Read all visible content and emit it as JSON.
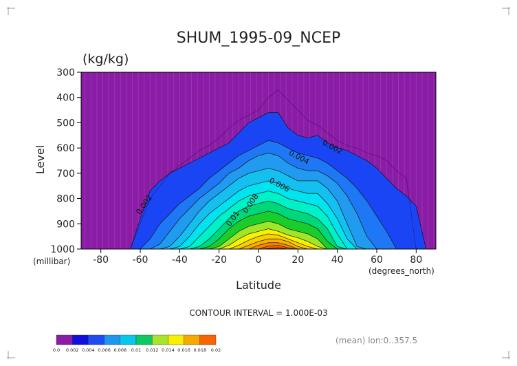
{
  "chart_data": {
    "type": "contour",
    "title": "SHUM_1995-09_NCEP",
    "units": "(kg/kg)",
    "xlabel": "Latitude",
    "ylabel": "Level",
    "x_unit_label": "(degrees_north)",
    "y_unit_label": "(millibar)",
    "xlim": [
      -90,
      90
    ],
    "ylim": [
      1000,
      300
    ],
    "x_ticks": [
      -80,
      -60,
      -40,
      -20,
      0,
      20,
      40,
      60,
      80
    ],
    "y_ticks": [
      300,
      400,
      500,
      600,
      700,
      800,
      900,
      1000
    ],
    "contour_interval_text": "CONTOUR INTERVAL = 1.000E-03",
    "footer_text": "(mean) lon:0..357.5",
    "contour_labels": [
      {
        "text": "0.002",
        "x": 37,
        "y": 605
      },
      {
        "text": "0.004",
        "x": 20,
        "y": 645
      },
      {
        "text": "0.006",
        "x": 10,
        "y": 755
      },
      {
        "text": "0.008",
        "x": -3,
        "y": 825
      },
      {
        "text": "0.01",
        "x": -12,
        "y": 885
      },
      {
        "text": "0.002",
        "x": -57,
        "y": 830
      }
    ],
    "profiles": {
      "lat": [
        -85,
        -75,
        -65,
        -60,
        -55,
        -50,
        -45,
        -40,
        -35,
        -30,
        -25,
        -20,
        -15,
        -10,
        -5,
        0,
        5,
        10,
        15,
        20,
        25,
        30,
        35,
        40,
        45,
        50,
        55,
        60,
        65,
        70,
        75,
        80,
        85
      ],
      "levels": [
        {
          "value": 0.001,
          "p": [
            1001,
            1001,
            1000,
            900,
            800,
            750,
            700,
            670,
            640,
            610,
            590,
            560,
            520,
            490,
            470,
            450,
            400,
            370,
            410,
            450,
            490,
            510,
            540,
            570,
            590,
            600,
            620,
            630,
            650,
            690,
            720,
            1001,
            1001
          ]
        },
        {
          "value": 0.002,
          "p": [
            1001,
            1001,
            1000,
            880,
            770,
            730,
            700,
            680,
            660,
            640,
            620,
            600,
            580,
            540,
            500,
            480,
            460,
            460,
            520,
            550,
            560,
            550,
            580,
            600,
            610,
            630,
            650,
            680,
            720,
            760,
            790,
            830,
            1000
          ]
        },
        {
          "value": 0.003,
          "p": [
            1001,
            1001,
            1001,
            1000,
            960,
            900,
            860,
            820,
            790,
            760,
            720,
            690,
            660,
            630,
            610,
            590,
            570,
            580,
            600,
            620,
            630,
            640,
            660,
            690,
            720,
            760,
            810,
            870,
            930,
            1000,
            1001,
            1001,
            1001
          ]
        },
        {
          "value": 0.004,
          "p": [
            1001,
            1001,
            1001,
            1001,
            1000,
            980,
            930,
            880,
            840,
            800,
            770,
            740,
            700,
            680,
            650,
            630,
            620,
            630,
            660,
            680,
            690,
            690,
            710,
            740,
            790,
            860,
            950,
            1000,
            1001,
            1001,
            1001,
            1001,
            1001
          ]
        },
        {
          "value": 0.005,
          "p": [
            1001,
            1001,
            1001,
            1001,
            1001,
            1000,
            990,
            950,
            900,
            850,
            810,
            780,
            750,
            720,
            700,
            690,
            680,
            690,
            710,
            730,
            730,
            730,
            760,
            810,
            900,
            990,
            1001,
            1001,
            1001,
            1001,
            1001,
            1001,
            1001
          ]
        },
        {
          "value": 0.006,
          "p": [
            1001,
            1001,
            1001,
            1001,
            1001,
            1001,
            1000,
            990,
            950,
            900,
            860,
            830,
            800,
            770,
            750,
            740,
            730,
            740,
            760,
            770,
            780,
            780,
            820,
            880,
            960,
            1000,
            1001,
            1001,
            1001,
            1001,
            1001,
            1001,
            1001
          ]
        },
        {
          "value": 0.007,
          "p": [
            1001,
            1001,
            1001,
            1001,
            1001,
            1001,
            1001,
            1000,
            990,
            950,
            910,
            870,
            840,
            810,
            790,
            780,
            770,
            780,
            800,
            810,
            820,
            830,
            870,
            940,
            1000,
            1001,
            1001,
            1001,
            1001,
            1001,
            1001,
            1001,
            1001
          ]
        },
        {
          "value": 0.008,
          "p": [
            1001,
            1001,
            1001,
            1001,
            1001,
            1001,
            1001,
            1001,
            1000,
            990,
            960,
            920,
            880,
            850,
            830,
            820,
            810,
            820,
            840,
            850,
            860,
            880,
            920,
            990,
            1001,
            1001,
            1001,
            1001,
            1001,
            1001,
            1001,
            1001,
            1001
          ]
        },
        {
          "value": 0.009,
          "p": [
            1001,
            1001,
            1001,
            1001,
            1001,
            1001,
            1001,
            1001,
            1001,
            1000,
            990,
            960,
            920,
            890,
            870,
            860,
            850,
            860,
            880,
            890,
            900,
            920,
            970,
            1000,
            1001,
            1001,
            1001,
            1001,
            1001,
            1001,
            1001,
            1001,
            1001
          ]
        },
        {
          "value": 0.01,
          "p": [
            1001,
            1001,
            1001,
            1001,
            1001,
            1001,
            1001,
            1001,
            1001,
            1001,
            1000,
            990,
            960,
            930,
            910,
            900,
            890,
            900,
            920,
            930,
            940,
            960,
            1000,
            1001,
            1001,
            1001,
            1001,
            1001,
            1001,
            1001,
            1001,
            1001,
            1001
          ]
        },
        {
          "value": 0.011,
          "p": [
            1001,
            1001,
            1001,
            1001,
            1001,
            1001,
            1001,
            1001,
            1001,
            1001,
            1001,
            1000,
            985,
            960,
            940,
            930,
            920,
            930,
            945,
            955,
            970,
            990,
            1001,
            1001,
            1001,
            1001,
            1001,
            1001,
            1001,
            1001,
            1001,
            1001,
            1001
          ]
        },
        {
          "value": 0.012,
          "p": [
            1001,
            1001,
            1001,
            1001,
            1001,
            1001,
            1001,
            1001,
            1001,
            1001,
            1001,
            1001,
            1000,
            985,
            965,
            950,
            940,
            945,
            960,
            975,
            990,
            1000,
            1001,
            1001,
            1001,
            1001,
            1001,
            1001,
            1001,
            1001,
            1001,
            1001,
            1001
          ]
        },
        {
          "value": 0.013,
          "p": [
            1001,
            1001,
            1001,
            1001,
            1001,
            1001,
            1001,
            1001,
            1001,
            1001,
            1001,
            1001,
            1001,
            1000,
            985,
            970,
            960,
            960,
            970,
            990,
            1000,
            1001,
            1001,
            1001,
            1001,
            1001,
            1001,
            1001,
            1001,
            1001,
            1001,
            1001,
            1001
          ]
        },
        {
          "value": 0.014,
          "p": [
            1001,
            1001,
            1001,
            1001,
            1001,
            1001,
            1001,
            1001,
            1001,
            1001,
            1001,
            1001,
            1001,
            1001,
            1000,
            985,
            975,
            975,
            985,
            1000,
            1001,
            1001,
            1001,
            1001,
            1001,
            1001,
            1001,
            1001,
            1001,
            1001,
            1001,
            1001,
            1001
          ]
        },
        {
          "value": 0.015,
          "p": [
            1001,
            1001,
            1001,
            1001,
            1001,
            1001,
            1001,
            1001,
            1001,
            1001,
            1001,
            1001,
            1001,
            1001,
            1001,
            1000,
            988,
            985,
            995,
            1001,
            1001,
            1001,
            1001,
            1001,
            1001,
            1001,
            1001,
            1001,
            1001,
            1001,
            1001,
            1001,
            1001
          ]
        },
        {
          "value": 0.016,
          "p": [
            1001,
            1001,
            1001,
            1001,
            1001,
            1001,
            1001,
            1001,
            1001,
            1001,
            1001,
            1001,
            1001,
            1001,
            1001,
            1001,
            998,
            995,
            1000,
            1001,
            1001,
            1001,
            1001,
            1001,
            1001,
            1001,
            1001,
            1001,
            1001,
            1001,
            1001,
            1001,
            1001
          ]
        }
      ]
    },
    "legend": {
      "labels": [
        "0.0",
        "0.002",
        "0.004",
        "0.006",
        "0.008",
        "0.01",
        "0.012",
        "0.014",
        "0.016",
        "0.018",
        "0.02"
      ],
      "colors": [
        "#8a1ca6",
        "#1010dc",
        "#1c4cf2",
        "#1e96f0",
        "#06c8e8",
        "#0fc864",
        "#a8e42c",
        "#f8f000",
        "#f8a800",
        "#f86400",
        "#f80000"
      ]
    },
    "fill_colors": [
      "#8a1ca6",
      "#0b0bef",
      "#1a45f5",
      "#1e78f5",
      "#209bf0",
      "#14c0f0",
      "#00e4f0",
      "#00f0c8",
      "#00d77a",
      "#19cd2a",
      "#a0e628",
      "#f7f000",
      "#f8d200",
      "#f8b000",
      "#f78800",
      "#f56200",
      "#e34a00"
    ]
  }
}
